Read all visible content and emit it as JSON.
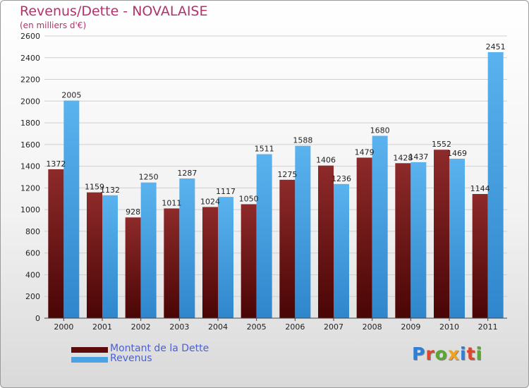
{
  "title": "Revenus/Dette - NOVALAISE",
  "subtitle": "(en milliers d'€)",
  "logo": {
    "text": "Proxiti",
    "colors": [
      "#2f7fd6",
      "#e0442a",
      "#5aa832",
      "#f0a21f",
      "#2f7fd6",
      "#e0442a",
      "#5aa832"
    ]
  },
  "colors": {
    "dette": "#7a1a1a",
    "revenus": "#4aa3e4",
    "title": "#b0336a",
    "legend_text": "#4a5fd8"
  },
  "legend": [
    {
      "label": "Montant de la Dette",
      "color": "#5c0a0a"
    },
    {
      "label": "Revenus",
      "color": "#4aa3e4"
    }
  ],
  "chart_data": {
    "type": "bar",
    "categories": [
      "2000",
      "2001",
      "2002",
      "2003",
      "2004",
      "2005",
      "2006",
      "2007",
      "2008",
      "2009",
      "2010",
      "2011"
    ],
    "series": [
      {
        "name": "Montant de la Dette",
        "values": [
          1372,
          1159,
          928,
          1011,
          1024,
          1050,
          1275,
          1406,
          1479,
          1428,
          1552,
          1144
        ]
      },
      {
        "name": "Revenus",
        "values": [
          2005,
          1132,
          1250,
          1287,
          1117,
          1511,
          1588,
          1236,
          1680,
          1437,
          1469,
          2451
        ]
      }
    ],
    "ylim": [
      0,
      2600
    ],
    "yticks": [
      0,
      200,
      400,
      600,
      800,
      1000,
      1200,
      1400,
      1600,
      1800,
      2000,
      2200,
      2400,
      2600
    ],
    "grid": true,
    "legend_position": "bottom-left"
  }
}
